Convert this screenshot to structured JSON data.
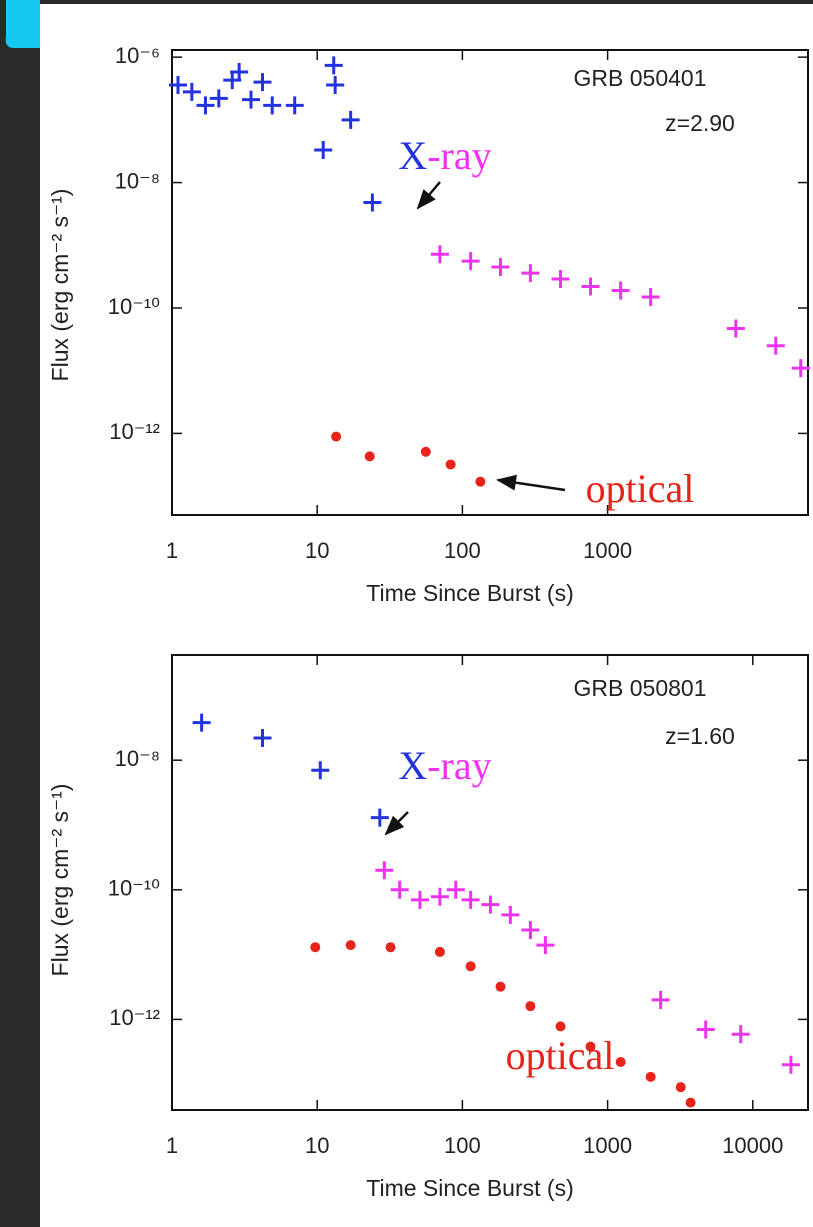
{
  "chart_data": [
    {
      "type": "scatter",
      "log_x": true,
      "log_y": true,
      "xlabel": "Time Since Burst (s)",
      "ylabel": "Flux (erg cm⁻² s⁻¹)",
      "grb": "GRB 050401",
      "redshift": "z=2.90",
      "xray_label": [
        "X",
        "-ray"
      ],
      "optical_label": "optical",
      "xlim": [
        1,
        24000
      ],
      "ylim": [
        5e-14,
        1.3e-06
      ],
      "xticks": [
        1,
        10,
        100,
        1000
      ],
      "yticks": [
        {
          "value": 1e-06,
          "label": "10⁻⁶"
        },
        {
          "value": 1e-08,
          "label": "10⁻⁸"
        },
        {
          "value": 1e-10,
          "label": "10⁻¹⁰"
        },
        {
          "value": 1e-12,
          "label": "10⁻¹²"
        }
      ],
      "series": [
        {
          "color": "#2233dd",
          "marker": "plus",
          "x": [
            1.1,
            1.37,
            1.7,
            2.1,
            2.6,
            2.9,
            3.5,
            4.2,
            4.9,
            7,
            11,
            13,
            13.3,
            17,
            24
          ],
          "values": [
            3.6e-07,
            2.8e-07,
            1.7e-07,
            2.2e-07,
            4.3e-07,
            5.8e-07,
            2.1e-07,
            4e-07,
            1.7e-07,
            1.7e-07,
            3.3e-08,
            7.4e-07,
            3.6e-07,
            1e-07,
            4.8e-09
          ]
        },
        {
          "color": "#ee33ee",
          "marker": "plus",
          "x": [
            70,
            114,
            183,
            294,
            474,
            763,
            1230,
            1980,
            7640,
            14400,
            21400
          ],
          "values": [
            7.2e-10,
            5.6e-10,
            4.5e-10,
            3.6e-10,
            2.9e-10,
            2.2e-10,
            1.9e-10,
            1.5e-10,
            4.7e-11,
            2.5e-11,
            1.1e-11
          ]
        },
        {
          "color": "#e8231a",
          "marker": "dot",
          "x": [
            13.5,
            23,
            56,
            83,
            133
          ],
          "values": [
            8.9e-13,
            4.3e-13,
            5.1e-13,
            3.2e-13,
            1.7e-13
          ]
        }
      ]
    },
    {
      "type": "scatter",
      "log_x": true,
      "log_y": true,
      "xlabel": "Time Since Burst (s)",
      "ylabel": "Flux (erg cm⁻² s⁻¹)",
      "grb": "GRB 050801",
      "redshift": "z=1.60",
      "xray_label": [
        "X",
        "-ray"
      ],
      "optical_label": "optical",
      "xlim": [
        1,
        24000
      ],
      "ylim": [
        4e-14,
        4.2e-07
      ],
      "xticks": [
        1,
        10,
        100,
        1000,
        10000
      ],
      "yticks": [
        {
          "value": 1e-08,
          "label": "10⁻⁸"
        },
        {
          "value": 1e-10,
          "label": "10⁻¹⁰"
        },
        {
          "value": 1e-12,
          "label": "10⁻¹²"
        }
      ],
      "series": [
        {
          "color": "#2233dd",
          "marker": "plus",
          "x": [
            1.6,
            4.2,
            10.5,
            27
          ],
          "values": [
            3.8e-08,
            2.2e-08,
            7e-09,
            1.3e-09
          ]
        },
        {
          "color": "#ee33ee",
          "marker": "plus",
          "x": [
            29,
            37,
            51,
            70,
            90,
            114,
            156,
            214,
            294,
            373,
            2320,
            4740,
            8260,
            18300
          ],
          "values": [
            2e-10,
            1e-10,
            7e-11,
            7.8e-11,
            1e-10,
            7e-11,
            5.9e-11,
            4.1e-11,
            2.4e-11,
            1.4e-11,
            2e-12,
            7e-13,
            5.9e-13,
            2e-13
          ]
        },
        {
          "color": "#e8231a",
          "marker": "dot",
          "x": [
            9.7,
            17,
            32,
            70,
            114,
            183,
            294,
            474,
            763,
            1230,
            1980,
            3190,
            3730
          ],
          "values": [
            1.3e-11,
            1.4e-11,
            1.3e-11,
            1.1e-11,
            6.6e-12,
            3.2e-12,
            1.6e-12,
            7.8e-13,
            3.8e-13,
            2.2e-13,
            1.3e-13,
            9e-14,
            5.2e-14
          ]
        }
      ]
    }
  ]
}
